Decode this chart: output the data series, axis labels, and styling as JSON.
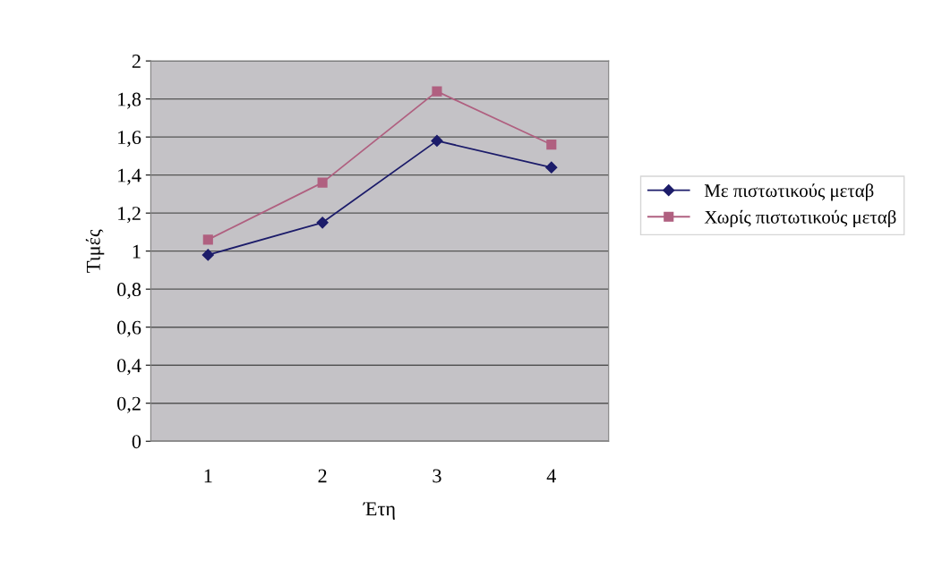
{
  "chart_data": {
    "type": "line",
    "xlabel": "Έτη",
    "ylabel": "Τιμές",
    "categories": [
      "1",
      "2",
      "3",
      "4"
    ],
    "series": [
      {
        "name": "Με πιστωτικούς μεταβ",
        "color": "#1c1c6a",
        "marker": "diamond",
        "values": [
          0.98,
          1.15,
          1.58,
          1.44
        ]
      },
      {
        "name": "Χωρίς πιστωτικούς μεταβ",
        "color": "#b06080",
        "marker": "square",
        "values": [
          1.06,
          1.36,
          1.84,
          1.56
        ]
      }
    ],
    "ylim": [
      0,
      2
    ],
    "yticks": [
      {
        "value": 0,
        "label": "0"
      },
      {
        "value": 0.2,
        "label": "0,2"
      },
      {
        "value": 0.4,
        "label": "0,4"
      },
      {
        "value": 0.6,
        "label": "0,6"
      },
      {
        "value": 0.8,
        "label": "0,8"
      },
      {
        "value": 1,
        "label": "1"
      },
      {
        "value": 1.2,
        "label": "1,2"
      },
      {
        "value": 1.4,
        "label": "1,4"
      },
      {
        "value": 1.6,
        "label": "1,6"
      },
      {
        "value": 1.8,
        "label": "1,8"
      },
      {
        "value": 2,
        "label": "2"
      }
    ],
    "grid": "y",
    "legend": "right",
    "line_style": "solid"
  }
}
